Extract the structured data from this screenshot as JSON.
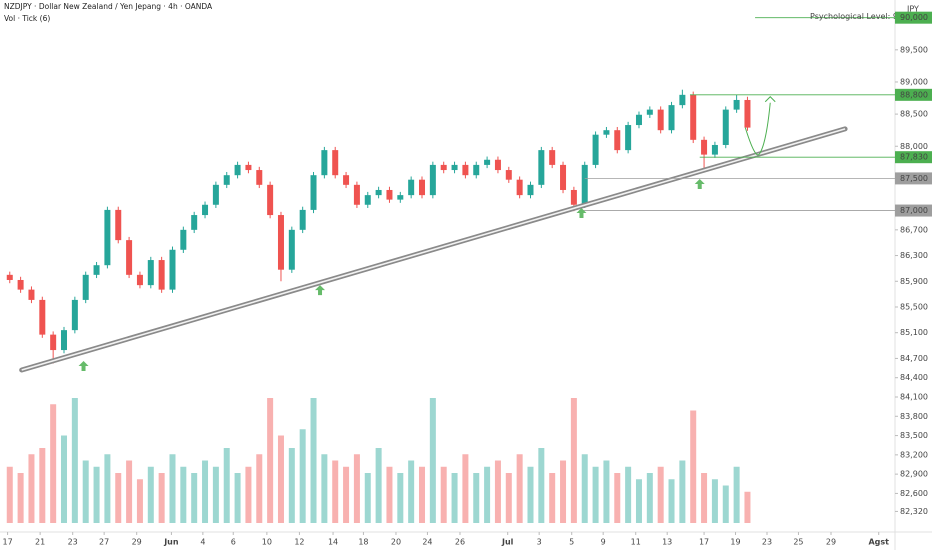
{
  "chart_data": {
    "type": "candlestick",
    "title": "NZDJPY · Dollar New Zealand / Yen Jepang · 4h · OANDA",
    "subtitle": "Vol · Tick (6)",
    "y_axis_label": "JPY",
    "up_color": "#26a69a",
    "down_color": "#ef5350",
    "x": [
      0,
      1,
      2,
      3,
      4,
      5,
      6,
      7,
      8,
      9,
      10,
      11,
      12,
      13,
      14,
      15,
      16,
      17,
      18,
      19,
      20,
      21,
      22,
      23,
      24,
      25,
      26,
      27,
      28,
      29,
      30,
      31,
      32,
      33,
      34,
      35,
      36,
      37,
      38,
      39,
      40,
      41,
      42,
      43,
      44,
      45,
      46,
      47,
      48,
      49,
      50,
      51,
      52,
      53,
      54,
      55,
      56,
      57,
      58,
      59,
      60,
      61,
      62,
      63,
      64,
      65,
      66,
      67,
      68
    ],
    "open": [
      86000,
      85920,
      85770,
      85610,
      85070,
      84830,
      85140,
      85610,
      86000,
      86150,
      87010,
      86540,
      86000,
      85840,
      86230,
      85770,
      86390,
      86700,
      86930,
      87090,
      87400,
      87550,
      87710,
      87630,
      87400,
      86930,
      86080,
      86700,
      87010,
      87550,
      87940,
      87550,
      87400,
      87090,
      87240,
      87320,
      87170,
      87240,
      87480,
      87240,
      87710,
      87630,
      87710,
      87550,
      87710,
      87790,
      87630,
      87480,
      87240,
      87400,
      87940,
      87710,
      87320,
      87090,
      87710,
      88180,
      88250,
      87940,
      88330,
      88490,
      88570,
      88250,
      88640,
      88800,
      88100,
      87870,
      88020,
      88570,
      88720
    ],
    "high": [
      86050,
      85970,
      85820,
      85660,
      85120,
      85190,
      85660,
      86050,
      86200,
      87060,
      87060,
      86590,
      86050,
      86280,
      86280,
      86440,
      86750,
      86980,
      87140,
      87450,
      87600,
      87760,
      87760,
      87680,
      87450,
      86980,
      86750,
      87060,
      87600,
      87990,
      87990,
      87600,
      87450,
      87290,
      87370,
      87370,
      87290,
      87530,
      87530,
      87760,
      87760,
      87760,
      87760,
      87760,
      87840,
      87840,
      87680,
      87530,
      87450,
      87990,
      87990,
      87760,
      87370,
      87760,
      88230,
      88300,
      88300,
      88380,
      88540,
      88620,
      88620,
      88690,
      88880,
      88850,
      88150,
      88070,
      88620,
      88800,
      88770
    ],
    "low": [
      85870,
      85720,
      85560,
      85020,
      84620,
      84780,
      85090,
      85560,
      85950,
      86100,
      86490,
      85950,
      85790,
      85790,
      85720,
      85720,
      86340,
      86650,
      86880,
      87040,
      87350,
      87500,
      87580,
      87350,
      86880,
      85900,
      86030,
      86650,
      86960,
      87500,
      87500,
      87350,
      87040,
      87040,
      87190,
      87120,
      87120,
      87190,
      87190,
      87190,
      87580,
      87580,
      87500,
      87500,
      87660,
      87580,
      87430,
      87190,
      87190,
      87350,
      87660,
      87270,
      86990,
      87040,
      87660,
      88130,
      87890,
      87890,
      88280,
      88440,
      88200,
      88200,
      88590,
      88050,
      87600,
      87820,
      87970,
      88520,
      88240
    ],
    "close": [
      85920,
      85770,
      85610,
      85070,
      84830,
      85140,
      85610,
      86000,
      86150,
      87010,
      86540,
      86000,
      85840,
      86230,
      85770,
      86390,
      86700,
      86930,
      87090,
      87400,
      87550,
      87710,
      87630,
      87400,
      86930,
      86080,
      86700,
      87010,
      87550,
      87940,
      87550,
      87400,
      87090,
      87240,
      87320,
      87170,
      87240,
      87480,
      87240,
      87710,
      87630,
      87710,
      87550,
      87710,
      87790,
      87630,
      87480,
      87240,
      87400,
      87940,
      87710,
      87320,
      87090,
      87710,
      88180,
      88250,
      87940,
      88330,
      88490,
      88570,
      88250,
      88640,
      88800,
      88100,
      87870,
      88020,
      88570,
      88720,
      88290
    ],
    "volume": [
      45,
      40,
      55,
      60,
      95,
      70,
      100,
      50,
      45,
      55,
      40,
      50,
      35,
      45,
      40,
      55,
      45,
      40,
      50,
      45,
      60,
      40,
      45,
      55,
      100,
      70,
      60,
      75,
      100,
      55,
      50,
      45,
      55,
      40,
      60,
      45,
      40,
      50,
      45,
      100,
      45,
      40,
      55,
      40,
      45,
      50,
      40,
      55,
      45,
      60,
      40,
      50,
      100,
      55,
      45,
      50,
      40,
      45,
      35,
      40,
      45,
      35,
      50,
      90,
      40,
      35,
      30,
      45,
      25
    ],
    "volume_ylim": [
      0,
      100
    ],
    "xlim": [
      -0.9,
      81.6
    ],
    "ylim": [
      82000,
      90275
    ],
    "xticks": [
      {
        "value": -0.2,
        "label": "17"
      },
      {
        "value": 2.8,
        "label": "21"
      },
      {
        "value": 5.8,
        "label": "23"
      },
      {
        "value": 8.7,
        "label": "27"
      },
      {
        "value": 11.7,
        "label": "29"
      },
      {
        "value": 14.9,
        "label": "Jun"
      },
      {
        "value": 17.8,
        "label": "4"
      },
      {
        "value": 20.6,
        "label": "6"
      },
      {
        "value": 23.7,
        "label": "10"
      },
      {
        "value": 26.7,
        "label": "12"
      },
      {
        "value": 29.8,
        "label": "14"
      },
      {
        "value": 32.6,
        "label": "18"
      },
      {
        "value": 35.6,
        "label": "20"
      },
      {
        "value": 38.5,
        "label": "24"
      },
      {
        "value": 41.5,
        "label": "26"
      },
      {
        "value": 45.9,
        "label": "Jul"
      },
      {
        "value": 48.8,
        "label": "3"
      },
      {
        "value": 51.8,
        "label": "5"
      },
      {
        "value": 54.7,
        "label": "9"
      },
      {
        "value": 57.7,
        "label": "11"
      },
      {
        "value": 60.6,
        "label": "13"
      },
      {
        "value": 64,
        "label": "17"
      },
      {
        "value": 66.9,
        "label": "19"
      },
      {
        "value": 69.8,
        "label": "23"
      },
      {
        "value": 72.7,
        "label": "25"
      },
      {
        "value": 75.7,
        "label": "29"
      },
      {
        "value": 80.1,
        "label": "Agst"
      }
    ],
    "yticks": [
      {
        "value": 89500,
        "label": "89,500"
      },
      {
        "value": 89000,
        "label": "89,000"
      },
      {
        "value": 88500,
        "label": "88,500"
      },
      {
        "value": 88000,
        "label": "88,000"
      },
      {
        "value": 86700,
        "label": "86,700"
      },
      {
        "value": 86300,
        "label": "86,300"
      },
      {
        "value": 85900,
        "label": "85,900"
      },
      {
        "value": 85500,
        "label": "85,500"
      },
      {
        "value": 85100,
        "label": "85,100"
      },
      {
        "value": 84700,
        "label": "84,700"
      },
      {
        "value": 84400,
        "label": "84,400"
      },
      {
        "value": 84100,
        "label": "84,100"
      },
      {
        "value": 83800,
        "label": "83,800"
      },
      {
        "value": 83500,
        "label": "83,500"
      },
      {
        "value": 83200,
        "label": "83,200"
      },
      {
        "value": 82900,
        "label": "82,900"
      },
      {
        "value": 82600,
        "label": "82,600"
      },
      {
        "value": 82320,
        "label": "82,320"
      }
    ],
    "levels": [
      {
        "value": 90000,
        "label": "90,000",
        "x_start": 68.7,
        "color": "#4caf50",
        "text": "Psychological Level: 90"
      },
      {
        "value": 88800,
        "label": "88,800",
        "x_start": 62.7,
        "color": "#4caf50"
      },
      {
        "value": 87830,
        "label": "87,830",
        "x_start": 63.6,
        "color": "#4caf50"
      },
      {
        "value": 87500,
        "label": "87,500",
        "x_start": 53,
        "color": "#9e9e9e"
      },
      {
        "value": 87000,
        "label": "87,000",
        "x_start": 52.5,
        "color": "#9e9e9e"
      }
    ],
    "trendline": {
      "x": [
        1.1,
        77
      ],
      "y": [
        84520,
        88270
      ]
    },
    "arrows": {
      "x": [
        6.8,
        28.6,
        52.7,
        63.6
      ],
      "y": [
        84660,
        85840,
        87040,
        87490
      ],
      "color": "#66bb6a"
    },
    "projection": {
      "x": [
        67.8,
        69.1,
        70.1
      ],
      "y": [
        88290,
        87880,
        88770
      ],
      "color": "#4caf50"
    }
  }
}
